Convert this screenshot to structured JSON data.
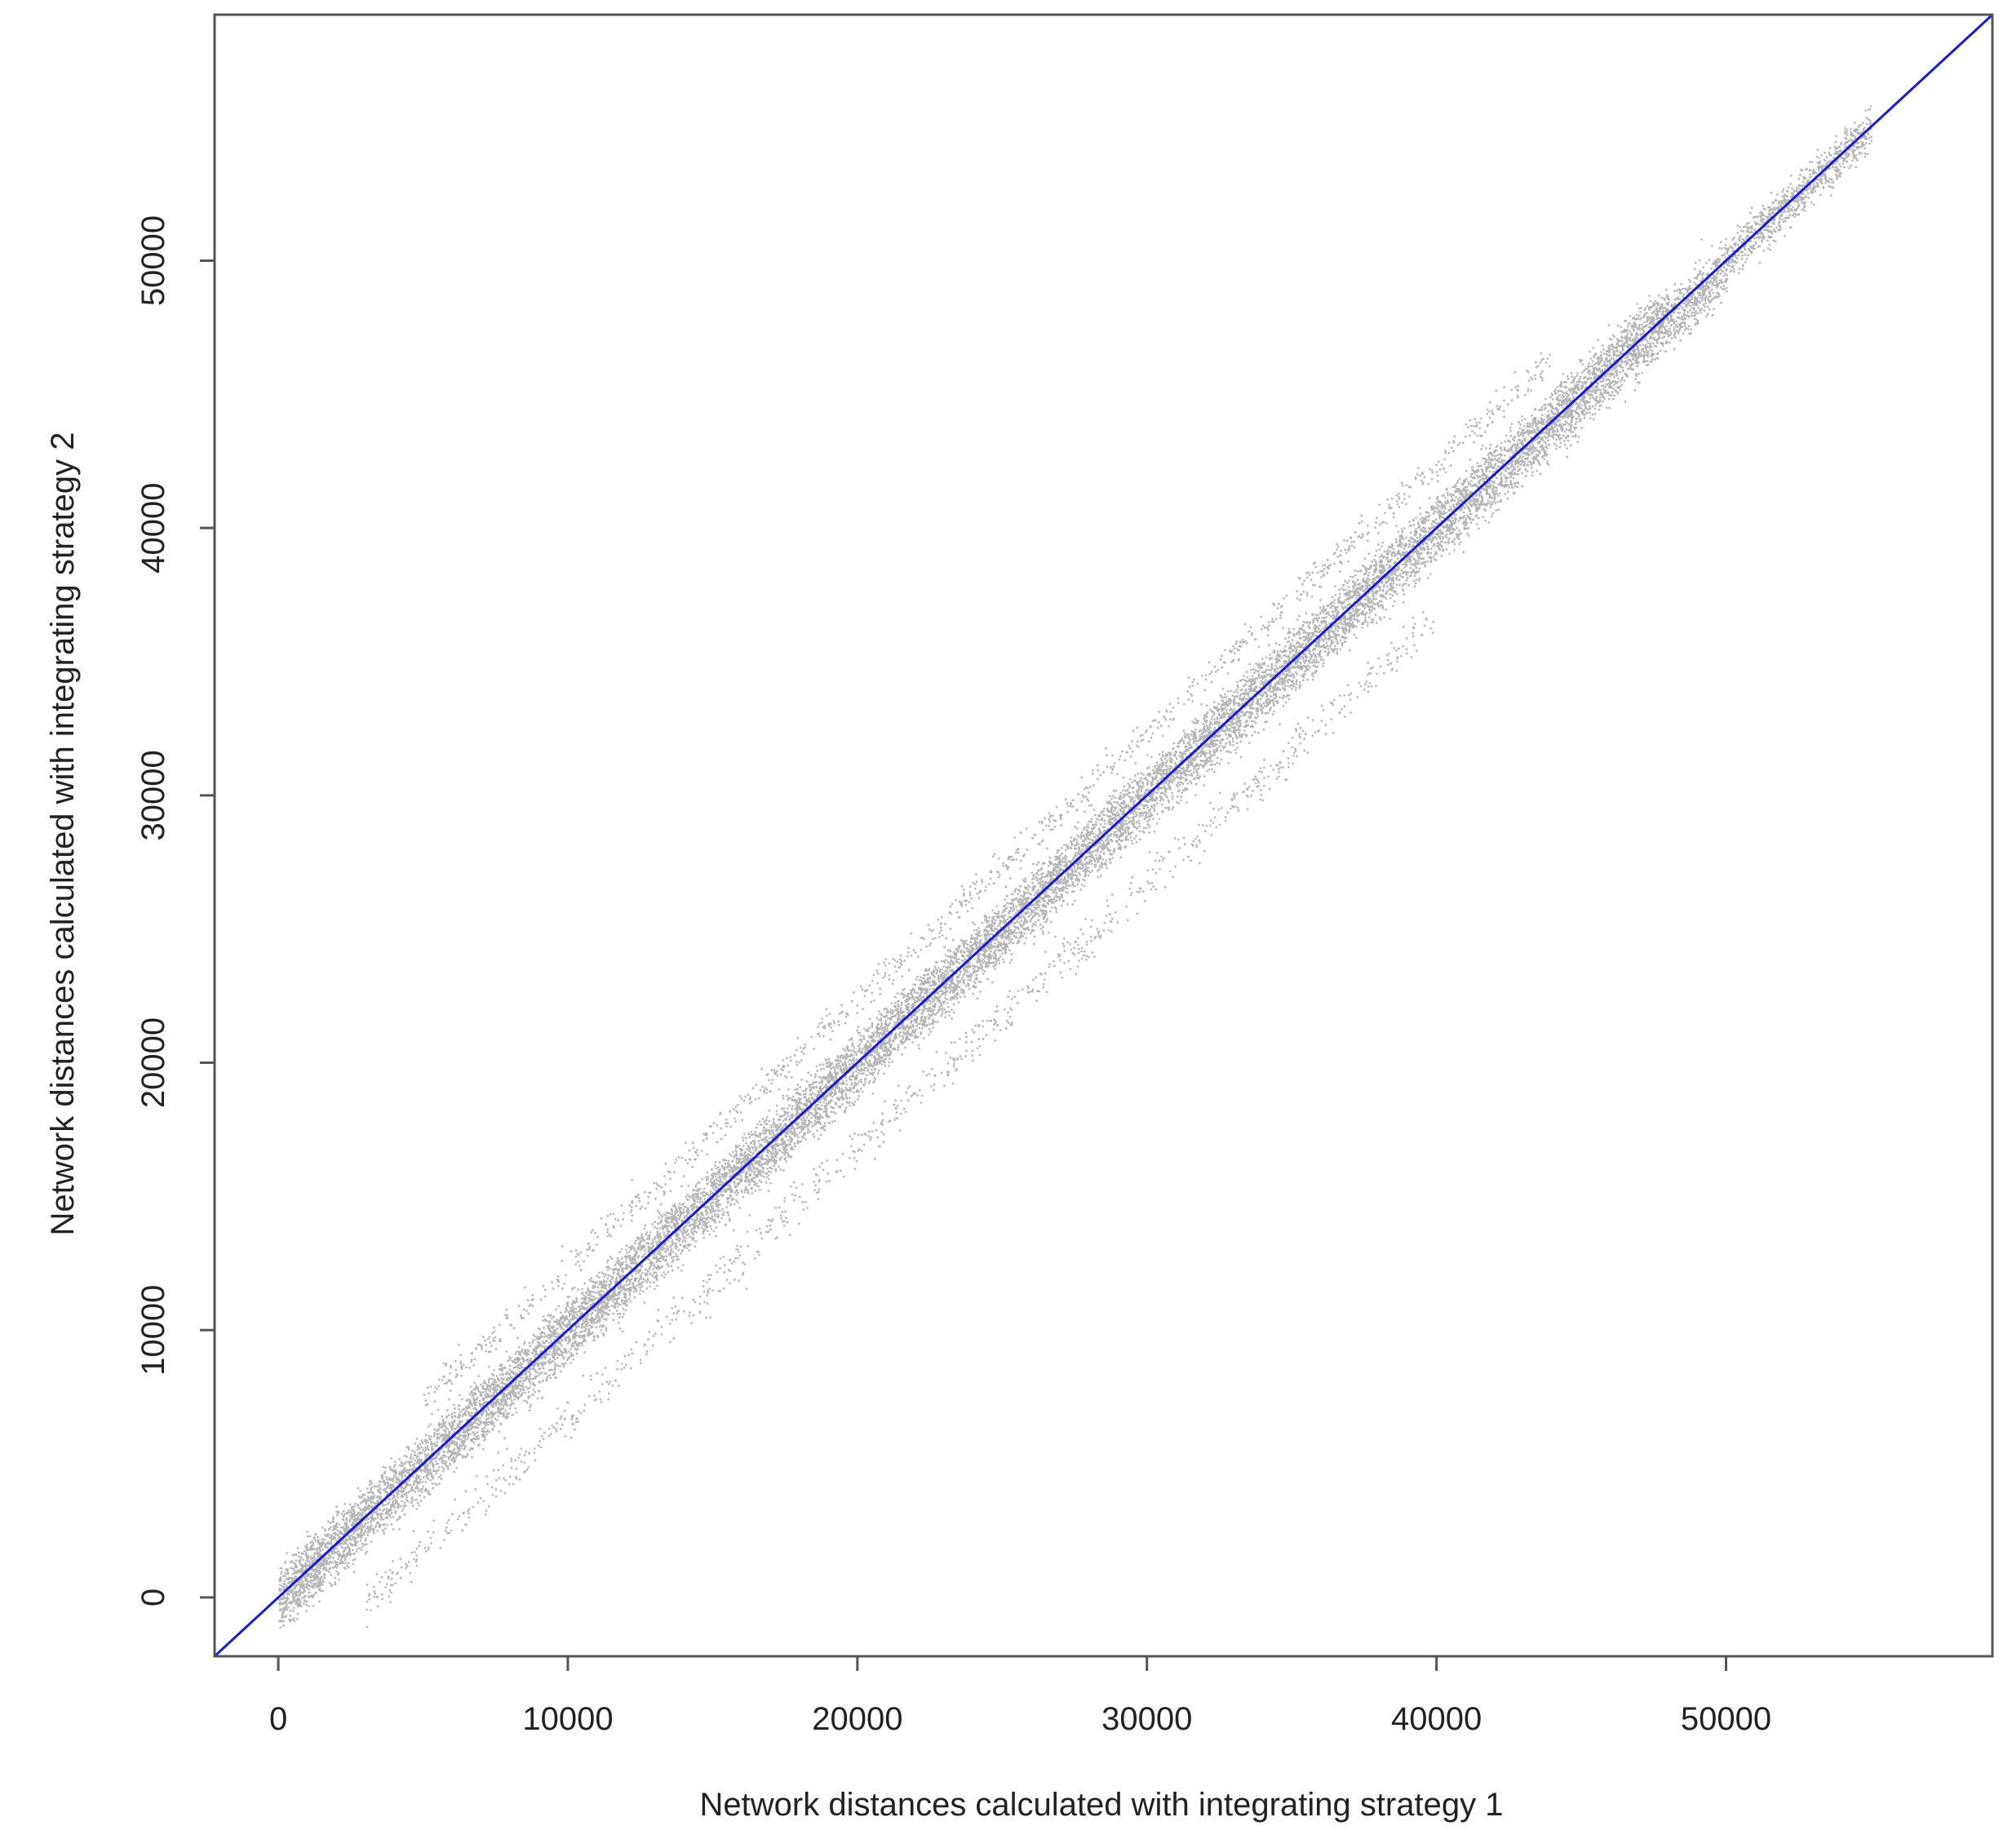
{
  "chart_data": {
    "type": "scatter",
    "title": "",
    "xlabel": "Network distances calculated with integrating strategy 1",
    "ylabel": "Network distances calculated with integrating strategy 2",
    "xlim": [
      -2200,
      59200
    ],
    "ylim": [
      -2200,
      59200
    ],
    "xticks": [
      0,
      10000,
      20000,
      30000,
      40000,
      50000
    ],
    "yticks": [
      0,
      10000,
      20000,
      30000,
      40000,
      50000
    ],
    "xtick_labels": [
      "0",
      "10000",
      "20000",
      "30000",
      "40000",
      "50000"
    ],
    "ytick_labels": [
      "0",
      "10000",
      "20000",
      "30000",
      "40000",
      "50000"
    ],
    "grid": false,
    "series": [
      {
        "kind": "points",
        "color": "#b4b4b4",
        "description_of_cloud": "dense band along y = x from 0 to ~55000",
        "bands": [
          {
            "x_range": [
              0,
              55000
            ],
            "offset": 0,
            "spread": 400,
            "count": 9000
          },
          {
            "x_range": [
              0,
              48000
            ],
            "offset": 700,
            "spread": 300,
            "count": 3500
          },
          {
            "x_range": [
              0,
              50000
            ],
            "offset": -700,
            "spread": 350,
            "count": 3500
          },
          {
            "x_range": [
              5000,
              44000
            ],
            "offset": 2400,
            "spread": 300,
            "count": 1000
          },
          {
            "x_range": [
              3000,
              40000
            ],
            "offset": -3200,
            "spread": 400,
            "count": 900
          }
        ]
      },
      {
        "kind": "line",
        "name": "",
        "color": "#1a1ad6",
        "equation": "y = x"
      }
    ]
  }
}
